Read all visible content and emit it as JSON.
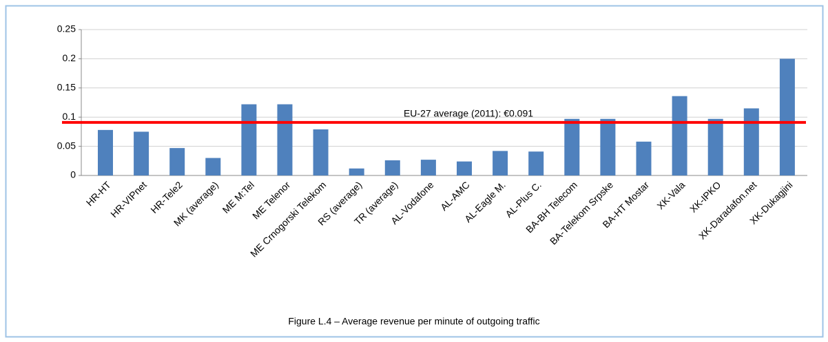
{
  "chart_data": {
    "type": "bar",
    "caption": "Figure L.4 – Average revenue per minute of outgoing traffic",
    "categories": [
      "HR-HT",
      "HR-VIPnet",
      "HR-Tele2",
      "MK (average)",
      "ME M:Tel",
      "ME Telenor",
      "ME Crnogorski Telekom",
      "RS (average)",
      "TR (average)",
      "AL-Vodafone",
      "AL-AMC",
      "AL-Eagle M.",
      "AL-Plus C.",
      "BA-BH Telecom",
      "BA-Telekom Srpske",
      "BA-HT Mostar",
      "XK-Vala",
      "XK-IPKO",
      "XK-Daradafon.net",
      "XK-Dukagjini"
    ],
    "values": [
      0.078,
      0.075,
      0.047,
      0.03,
      0.122,
      0.122,
      0.079,
      0.012,
      0.026,
      0.027,
      0.024,
      0.042,
      0.041,
      0.097,
      0.097,
      0.058,
      0.136,
      0.097,
      0.115,
      0.2
    ],
    "color": "#4f81bd",
    "ylim": [
      0,
      0.25
    ],
    "yticks": [
      0,
      0.05,
      0.1,
      0.15,
      0.2,
      0.25
    ],
    "grid": true,
    "reference_line": {
      "value": 0.091,
      "label": "EU-27 average (2011): €0.091",
      "color": "#ff0000"
    }
  }
}
